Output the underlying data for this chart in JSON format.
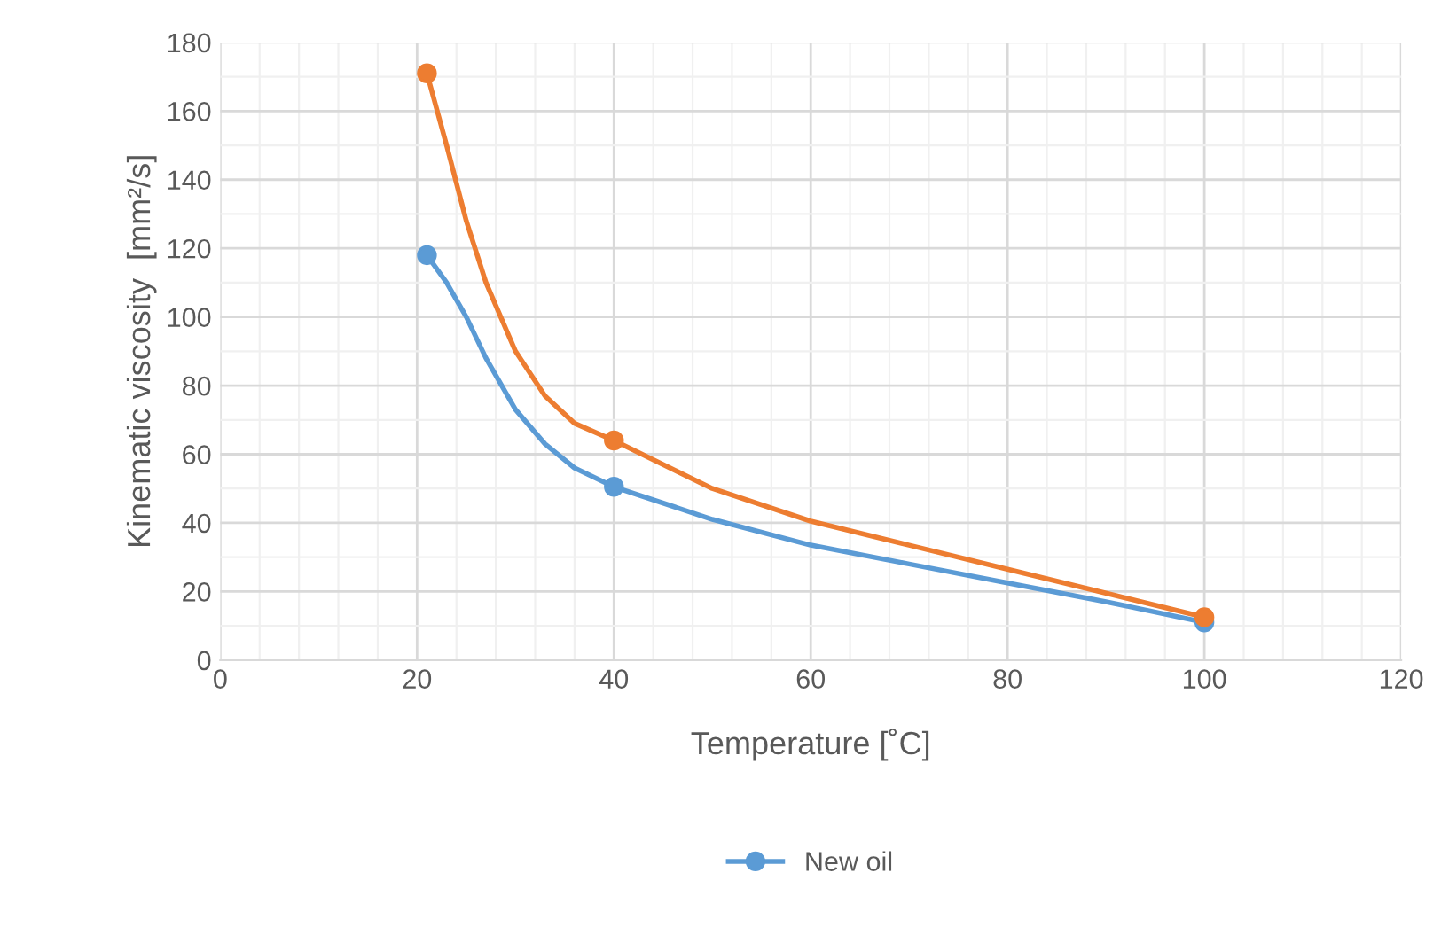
{
  "chart_data": {
    "type": "line",
    "xlabel": "Temperature [˚C]",
    "ylabel": "Kinematic viscosity  [mm²/s]",
    "xlim": [
      0,
      120
    ],
    "xticks": [
      0,
      20,
      40,
      60,
      80,
      100,
      120
    ],
    "ylim": [
      0,
      180
    ],
    "yticks": [
      0,
      20,
      40,
      60,
      80,
      100,
      120,
      140,
      160,
      180
    ],
    "grid": true,
    "legend": "bottom",
    "line_style": "solid",
    "series": [
      {
        "name": "New oil",
        "color": "#5b9bd5",
        "x": [
          21,
          23,
          25,
          27,
          30,
          33,
          36,
          40,
          50,
          60,
          70,
          80,
          90,
          100
        ],
        "values": [
          118,
          110,
          100,
          88,
          73,
          63,
          56,
          50.5,
          41,
          33.5,
          28,
          22.5,
          17,
          11
        ]
      },
      {
        "type": "scatter",
        "marker": "circle",
        "color": "#5b9bd5",
        "x": [
          21,
          40,
          100
        ],
        "values": [
          118,
          50.5,
          11
        ]
      },
      {
        "color": "#ed7d31",
        "x": [
          21,
          23,
          25,
          27,
          30,
          33,
          36,
          40,
          50,
          60,
          70,
          80,
          90,
          100
        ],
        "values": [
          171,
          150,
          128,
          110,
          90,
          77,
          69,
          64,
          50,
          40.5,
          33.5,
          26.5,
          19.5,
          12.5
        ]
      },
      {
        "type": "scatter",
        "marker": "circle",
        "color": "#ed7d31",
        "x": [
          21,
          40,
          100
        ],
        "values": [
          171,
          64,
          12.5
        ]
      }
    ]
  }
}
